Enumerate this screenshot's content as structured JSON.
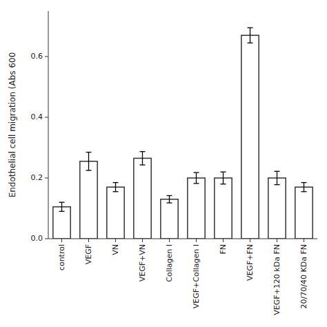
{
  "chart_data": {
    "type": "bar",
    "ylabel": "Endothelial cell migration (Abs 600",
    "categories": [
      "control",
      "VEGF",
      "VN",
      "VEGF+VN",
      "Collagen I",
      "VEGF+Collagen I",
      "FN",
      "VEGF+FN",
      "VEGF+120 kDa FN",
      "20/70/40 KDa FN"
    ],
    "values": [
      0.105,
      0.255,
      0.17,
      0.265,
      0.13,
      0.2,
      0.2,
      0.67,
      0.2,
      0.17
    ],
    "errors": [
      0.015,
      0.03,
      0.015,
      0.022,
      0.012,
      0.018,
      0.02,
      0.025,
      0.022,
      0.015
    ],
    "color": "#ffffff",
    "ylim": [
      0,
      0.75
    ],
    "yticks": [
      {
        "value": 0,
        "label": "0.0"
      },
      0.2,
      0.4,
      0.6
    ],
    "grid": false
  }
}
